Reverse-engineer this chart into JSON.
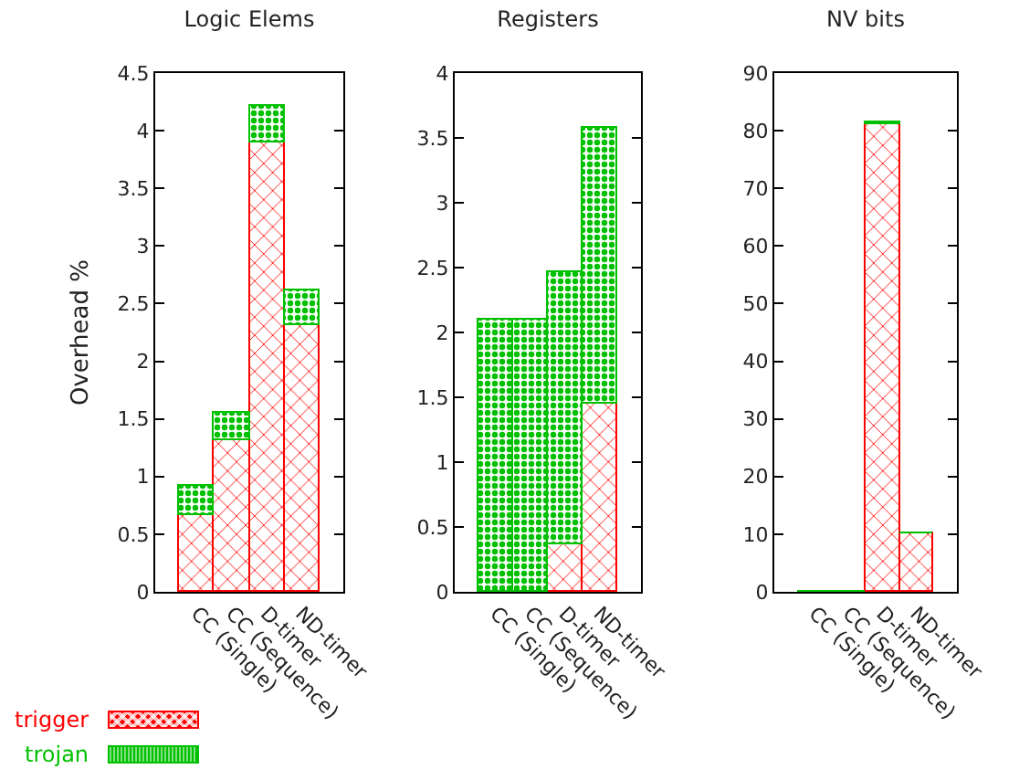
{
  "chart_data": [
    {
      "type": "bar",
      "title": "Logic Elems",
      "ylabel": "Overhead %",
      "categories": [
        "CC (Single)",
        "CC (Sequence)",
        "D-timer",
        "ND-timer"
      ],
      "stacked": true,
      "ylim": [
        0,
        4.5
      ],
      "yticks": [
        0,
        0.5,
        1,
        1.5,
        2,
        2.5,
        3,
        3.5,
        4,
        4.5
      ],
      "legend": "bottom left",
      "series": [
        {
          "name": "trigger",
          "color": "#ff0000",
          "values": [
            0.67,
            1.31,
            3.9,
            2.32
          ]
        },
        {
          "name": "trojan",
          "color": "#00c000",
          "values": [
            0.25,
            0.25,
            0.32,
            0.3
          ]
        }
      ]
    },
    {
      "type": "bar",
      "title": "Registers",
      "categories": [
        "CC (Single)",
        "CC (Sequence)",
        "D-timer",
        "ND-timer"
      ],
      "stacked": true,
      "ylim": [
        0,
        4
      ],
      "yticks": [
        0,
        0.5,
        1,
        1.5,
        2,
        2.5,
        3,
        3.5,
        4
      ],
      "series": [
        {
          "color": "#ff0000",
          "values": [
            0,
            0,
            0.36,
            1.45
          ]
        },
        {
          "color": "#00c000",
          "values": [
            2.1,
            2.1,
            2.11,
            2.13
          ]
        }
      ]
    },
    {
      "type": "bar",
      "title": "NV bits",
      "categories": [
        "CC (Single)",
        "CC (Sequence)",
        "D-timer",
        "ND-timer"
      ],
      "stacked": true,
      "ylim": [
        0,
        90
      ],
      "yticks": [
        0,
        10,
        20,
        30,
        40,
        50,
        60,
        70,
        80,
        90
      ],
      "series": [
        {
          "color": "#ff0000",
          "values": [
            0,
            0,
            81,
            10
          ]
        },
        {
          "color": "#00c000",
          "values": [
            0,
            0,
            0.3,
            0
          ]
        }
      ]
    }
  ]
}
